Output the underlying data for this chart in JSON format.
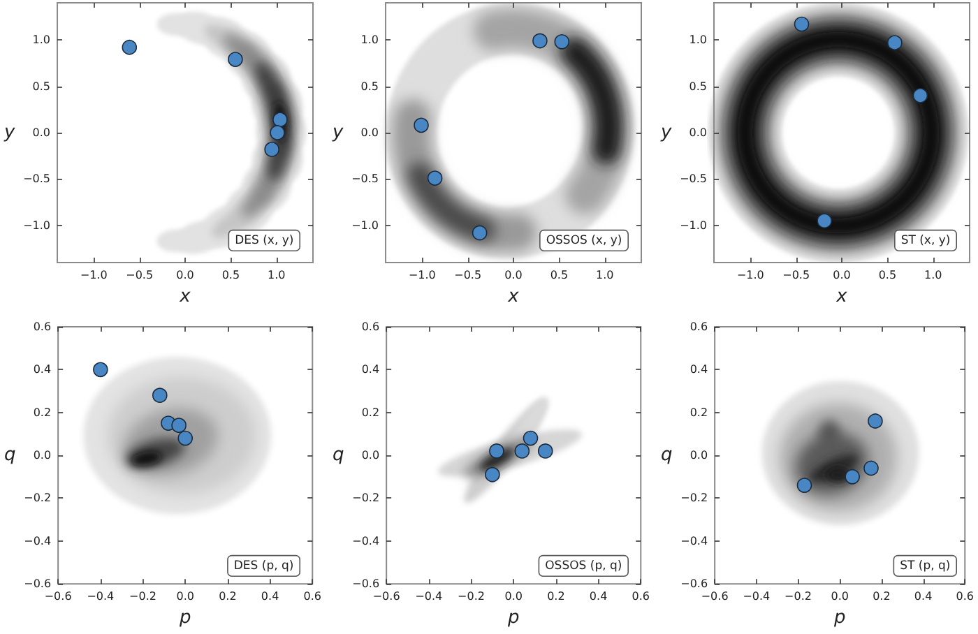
{
  "chart_data": [
    {
      "type": "scatter",
      "xlabel": "x",
      "ylabel": "y",
      "annotations": [
        "DES (x, y)"
      ],
      "xlim": [
        -1.4,
        1.4
      ],
      "ylim": [
        -1.4,
        1.4
      ],
      "xticks": [
        {
          "value": -1,
          "label": "−1.0"
        },
        {
          "value": -0.5,
          "label": "−0.5"
        },
        {
          "value": 0,
          "label": "0.0"
        },
        {
          "value": 0.5,
          "label": "0.5"
        },
        {
          "value": 1,
          "label": "1.0"
        }
      ],
      "yticks": [
        {
          "value": -1,
          "label": "−1.0"
        },
        {
          "value": -0.5,
          "label": "−0.5"
        },
        {
          "value": 0,
          "label": "0.0"
        },
        {
          "value": 0.5,
          "label": "0.5"
        },
        {
          "value": 1,
          "label": "1.0"
        }
      ],
      "marker": "circle",
      "series": [
        {
          "color": "#4886c4",
          "x": [
            -0.61,
            0.55,
            1.04,
            1.01,
            0.95
          ],
          "values": [
            0.92,
            0.79,
            0.14,
            0.0,
            -0.18
          ]
        }
      ]
    },
    {
      "type": "scatter",
      "xlabel": "x",
      "ylabel": "y",
      "annotations": [
        "OSSOS (x, y)"
      ],
      "xlim": [
        -1.4,
        1.4
      ],
      "ylim": [
        -1.4,
        1.4
      ],
      "xticks": [
        {
          "value": -1,
          "label": "−1.0"
        },
        {
          "value": -0.5,
          "label": "−0.5"
        },
        {
          "value": 0,
          "label": "0.0"
        },
        {
          "value": 0.5,
          "label": "0.5"
        },
        {
          "value": 1,
          "label": "1.0"
        }
      ],
      "yticks": [
        {
          "value": -1,
          "label": "−1.0"
        },
        {
          "value": -0.5,
          "label": "−0.5"
        },
        {
          "value": 0,
          "label": "0.0"
        },
        {
          "value": 0.5,
          "label": "0.5"
        },
        {
          "value": 1,
          "label": "1.0"
        }
      ],
      "marker": "circle",
      "series": [
        {
          "color": "#4886c4",
          "x": [
            -1.01,
            -0.86,
            -0.37,
            0.29,
            0.53
          ],
          "values": [
            0.08,
            -0.49,
            -1.08,
            0.99,
            0.98
          ]
        }
      ]
    },
    {
      "type": "scatter",
      "xlabel": "x",
      "ylabel": "y",
      "annotations": [
        "ST (x, y)"
      ],
      "xlim": [
        -1.4,
        1.4
      ],
      "ylim": [
        -1.4,
        1.4
      ],
      "xticks": [
        {
          "value": -1,
          "label": "−1.0"
        },
        {
          "value": -0.5,
          "label": "−0.5"
        },
        {
          "value": 0,
          "label": "0.0"
        },
        {
          "value": 0.5,
          "label": "0.5"
        },
        {
          "value": 1,
          "label": "1.0"
        }
      ],
      "yticks": [
        {
          "value": -1,
          "label": "−1.0"
        },
        {
          "value": -0.5,
          "label": "−0.5"
        },
        {
          "value": 0,
          "label": "0.0"
        },
        {
          "value": 0.5,
          "label": "0.5"
        },
        {
          "value": 1,
          "label": "1.0"
        }
      ],
      "marker": "circle",
      "series": [
        {
          "color": "#4886c4",
          "x": [
            -0.44,
            0.58,
            0.86,
            -0.19
          ],
          "values": [
            1.17,
            0.97,
            0.4,
            -0.95
          ]
        }
      ]
    },
    {
      "type": "scatter",
      "xlabel": "p",
      "ylabel": "q",
      "annotations": [
        "DES (p, q)"
      ],
      "xlim": [
        -0.6,
        0.6
      ],
      "ylim": [
        -0.6,
        0.6
      ],
      "xticks": [
        {
          "value": -0.6,
          "label": "−0.6"
        },
        {
          "value": -0.4,
          "label": "−0.4"
        },
        {
          "value": -0.2,
          "label": "−0.2"
        },
        {
          "value": 0,
          "label": "0.0"
        },
        {
          "value": 0.2,
          "label": "0.2"
        },
        {
          "value": 0.4,
          "label": "0.4"
        },
        {
          "value": 0.6,
          "label": "0.6"
        }
      ],
      "yticks": [
        {
          "value": -0.6,
          "label": "−0.6"
        },
        {
          "value": -0.4,
          "label": "−0.4"
        },
        {
          "value": -0.2,
          "label": "−0.2"
        },
        {
          "value": 0,
          "label": "0.0"
        },
        {
          "value": 0.2,
          "label": "0.2"
        },
        {
          "value": 0.4,
          "label": "0.4"
        },
        {
          "value": 0.6,
          "label": "0.6"
        }
      ],
      "marker": "circle",
      "series": [
        {
          "color": "#4886c4",
          "x": [
            -0.4,
            -0.12,
            -0.08,
            -0.03,
            0.0
          ],
          "values": [
            0.4,
            0.28,
            0.15,
            0.14,
            0.08
          ]
        }
      ]
    },
    {
      "type": "scatter",
      "xlabel": "p",
      "ylabel": "q",
      "annotations": [
        "OSSOS (p, q)"
      ],
      "xlim": [
        -0.6,
        0.6
      ],
      "ylim": [
        -0.6,
        0.6
      ],
      "xticks": [
        {
          "value": -0.6,
          "label": "−0.6"
        },
        {
          "value": -0.4,
          "label": "−0.4"
        },
        {
          "value": -0.2,
          "label": "−0.2"
        },
        {
          "value": 0,
          "label": "0.0"
        },
        {
          "value": 0.2,
          "label": "0.2"
        },
        {
          "value": 0.4,
          "label": "0.4"
        },
        {
          "value": 0.6,
          "label": "0.6"
        }
      ],
      "yticks": [
        {
          "value": -0.6,
          "label": "−0.6"
        },
        {
          "value": -0.4,
          "label": "−0.4"
        },
        {
          "value": -0.2,
          "label": "−0.2"
        },
        {
          "value": 0,
          "label": "0.0"
        },
        {
          "value": 0.2,
          "label": "0.2"
        },
        {
          "value": 0.4,
          "label": "0.4"
        },
        {
          "value": 0.6,
          "label": "0.6"
        }
      ],
      "marker": "circle",
      "series": [
        {
          "color": "#4886c4",
          "x": [
            -0.08,
            -0.1,
            0.04,
            0.08,
            0.15
          ],
          "values": [
            0.02,
            -0.09,
            0.02,
            0.08,
            0.02
          ]
        }
      ]
    },
    {
      "type": "scatter",
      "xlabel": "p",
      "ylabel": "q",
      "annotations": [
        "ST (p, q)"
      ],
      "xlim": [
        -0.6,
        0.6
      ],
      "ylim": [
        -0.6,
        0.6
      ],
      "xticks": [
        {
          "value": -0.6,
          "label": "−0.6"
        },
        {
          "value": -0.4,
          "label": "−0.4"
        },
        {
          "value": -0.2,
          "label": "−0.2"
        },
        {
          "value": 0,
          "label": "0.0"
        },
        {
          "value": 0.2,
          "label": "0.2"
        },
        {
          "value": 0.4,
          "label": "0.4"
        },
        {
          "value": 0.6,
          "label": "0.6"
        }
      ],
      "yticks": [
        {
          "value": -0.6,
          "label": "−0.6"
        },
        {
          "value": -0.4,
          "label": "−0.4"
        },
        {
          "value": -0.2,
          "label": "−0.2"
        },
        {
          "value": 0,
          "label": "0.0"
        },
        {
          "value": 0.2,
          "label": "0.2"
        },
        {
          "value": 0.4,
          "label": "0.4"
        },
        {
          "value": 0.6,
          "label": "0.6"
        }
      ],
      "marker": "circle",
      "series": [
        {
          "color": "#4886c4",
          "x": [
            0.17,
            -0.17,
            0.06,
            0.15
          ],
          "values": [
            0.16,
            -0.14,
            -0.1,
            -0.06
          ]
        }
      ]
    }
  ]
}
